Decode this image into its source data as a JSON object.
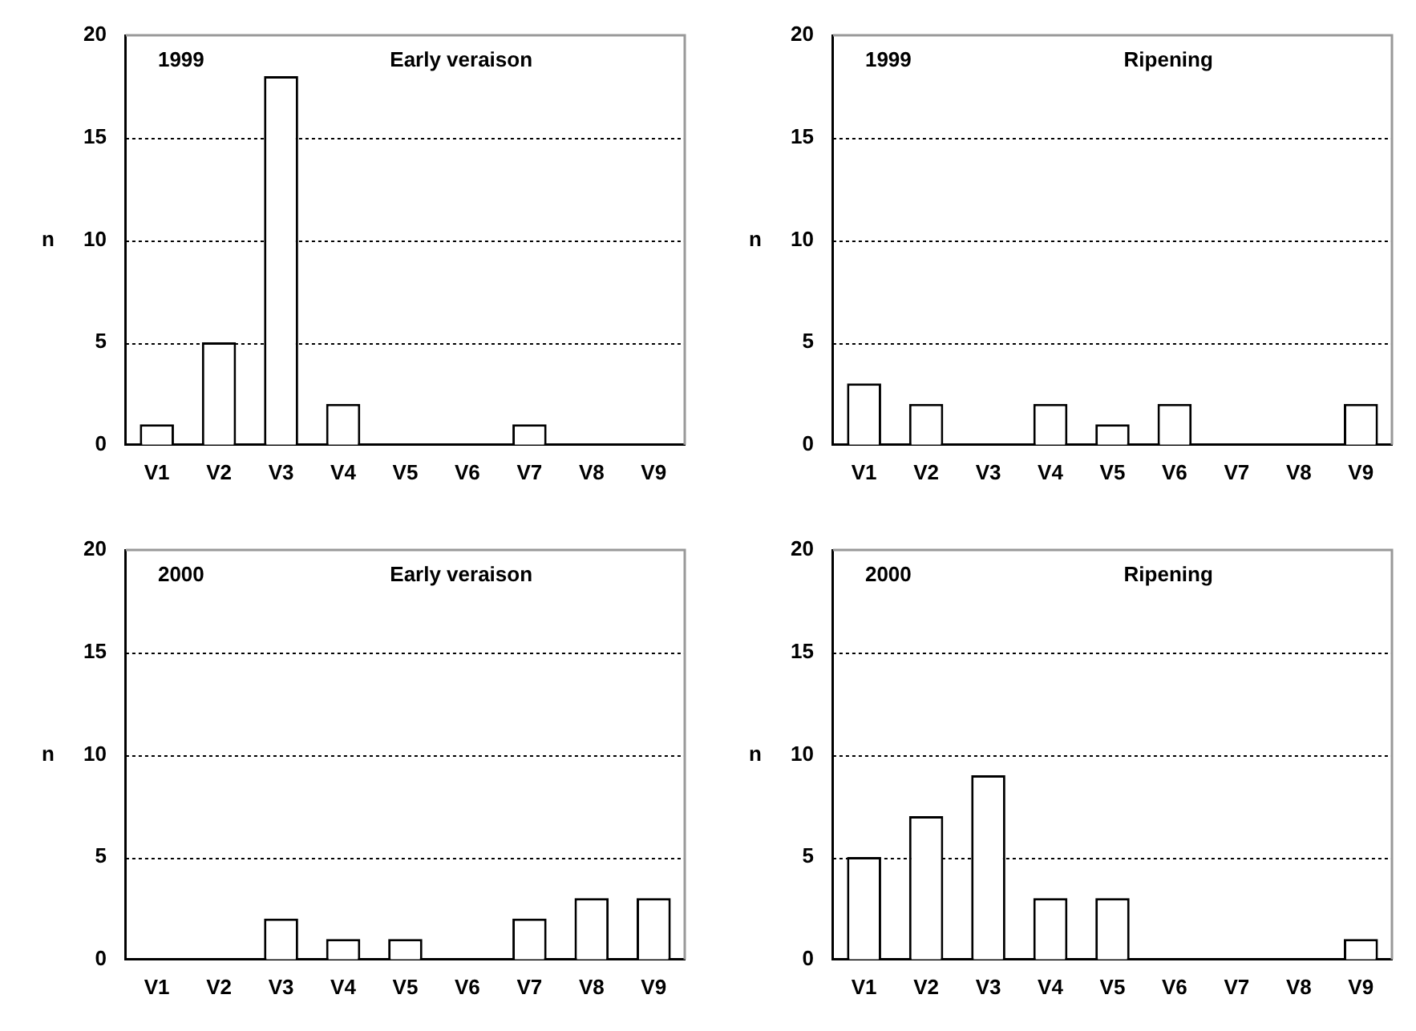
{
  "chart_data": [
    {
      "type": "bar",
      "annotations": [
        "1999",
        "Early veraison"
      ],
      "ylabel": "n",
      "categories": [
        "V1",
        "V2",
        "V3",
        "V4",
        "V5",
        "V6",
        "V7",
        "V8",
        "V9"
      ],
      "values": [
        1,
        5,
        18,
        2,
        0,
        0,
        1,
        0,
        0
      ],
      "color": "#ffffff",
      "ylim": [
        0,
        20
      ],
      "yticks": [
        0,
        5,
        10,
        15,
        20
      ],
      "grid": "y",
      "legend": false
    },
    {
      "type": "bar",
      "annotations": [
        "1999",
        "Ripening"
      ],
      "ylabel": "n",
      "categories": [
        "V1",
        "V2",
        "V3",
        "V4",
        "V5",
        "V6",
        "V7",
        "V8",
        "V9"
      ],
      "values": [
        3,
        2,
        0,
        2,
        1,
        2,
        0,
        0,
        2
      ],
      "color": "#ffffff",
      "ylim": [
        0,
        20
      ],
      "yticks": [
        0,
        5,
        10,
        15,
        20
      ],
      "grid": "y",
      "legend": false
    },
    {
      "type": "bar",
      "annotations": [
        "2000",
        "Early veraison"
      ],
      "ylabel": "n",
      "categories": [
        "V1",
        "V2",
        "V3",
        "V4",
        "V5",
        "V6",
        "V7",
        "V8",
        "V9"
      ],
      "values": [
        0,
        0,
        2,
        1,
        1,
        0,
        2,
        3,
        3
      ],
      "color": "#ffffff",
      "ylim": [
        0,
        20
      ],
      "yticks": [
        0,
        5,
        10,
        15,
        20
      ],
      "grid": "y",
      "legend": false
    },
    {
      "type": "bar",
      "annotations": [
        "2000",
        "Ripening"
      ],
      "ylabel": "n",
      "categories": [
        "V1",
        "V2",
        "V3",
        "V4",
        "V5",
        "V6",
        "V7",
        "V8",
        "V9"
      ],
      "values": [
        5,
        7,
        9,
        3,
        3,
        0,
        0,
        0,
        1
      ],
      "color": "#ffffff",
      "ylim": [
        0,
        20
      ],
      "yticks": [
        0,
        5,
        10,
        15,
        20
      ],
      "grid": "y",
      "legend": false
    }
  ]
}
